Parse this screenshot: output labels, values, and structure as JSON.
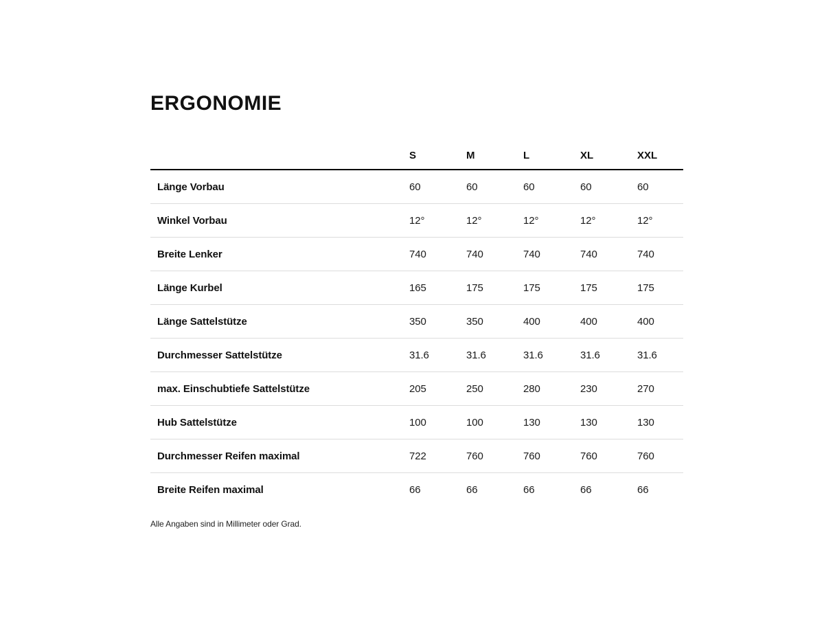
{
  "page": {
    "title": "ERGONOMIE",
    "footnote": "Alle Angaben sind in Millimeter oder Grad."
  },
  "table": {
    "columns": [
      "S",
      "M",
      "L",
      "XL",
      "XXL"
    ],
    "rows": [
      {
        "label": "Länge Vorbau",
        "values": [
          "60",
          "60",
          "60",
          "60",
          "60"
        ]
      },
      {
        "label": "Winkel Vorbau",
        "values": [
          "12°",
          "12°",
          "12°",
          "12°",
          "12°"
        ]
      },
      {
        "label": "Breite Lenker",
        "values": [
          "740",
          "740",
          "740",
          "740",
          "740"
        ]
      },
      {
        "label": "Länge Kurbel",
        "values": [
          "165",
          "175",
          "175",
          "175",
          "175"
        ]
      },
      {
        "label": "Länge Sattelstütze",
        "values": [
          "350",
          "350",
          "400",
          "400",
          "400"
        ]
      },
      {
        "label": "Durchmesser Sattelstütze",
        "values": [
          "31.6",
          "31.6",
          "31.6",
          "31.6",
          "31.6"
        ]
      },
      {
        "label": "max. Einschubtiefe Sattelstütze",
        "values": [
          "205",
          "250",
          "280",
          "230",
          "270"
        ]
      },
      {
        "label": "Hub Sattelstütze",
        "values": [
          "100",
          "100",
          "130",
          "130",
          "130"
        ]
      },
      {
        "label": "Durchmesser Reifen maximal",
        "values": [
          "722",
          "760",
          "760",
          "760",
          "760"
        ]
      },
      {
        "label": "Breite Reifen maximal",
        "values": [
          "66",
          "66",
          "66",
          "66",
          "66"
        ]
      }
    ]
  },
  "colors": {
    "text": "#1a1a1a",
    "header_rule": "#000000",
    "row_separator": "#dcdcdc"
  }
}
